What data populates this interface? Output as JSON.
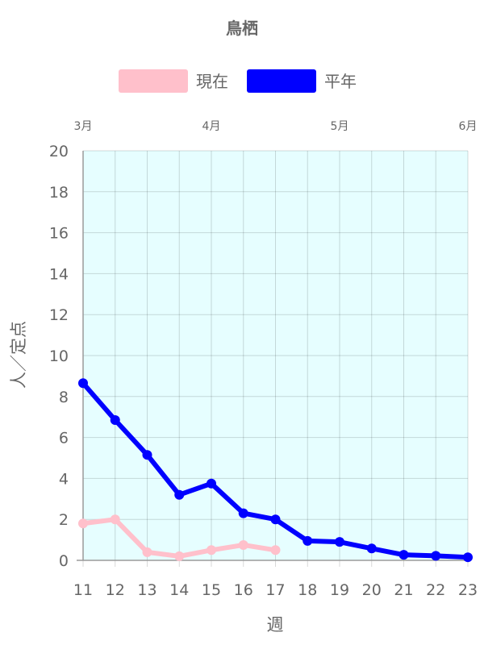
{
  "chart_data": {
    "type": "line",
    "title": "鳥栖",
    "xlabel": "週",
    "ylabel": "人／定点",
    "x": [
      11,
      12,
      13,
      14,
      15,
      16,
      17,
      18,
      19,
      20,
      21,
      22,
      23
    ],
    "ylim": [
      0,
      20
    ],
    "yticks": [
      0,
      2,
      4,
      6,
      8,
      10,
      12,
      14,
      16,
      18,
      20
    ],
    "month_labels": [
      {
        "label": "3月",
        "week": 11
      },
      {
        "label": "4月",
        "week": 15
      },
      {
        "label": "5月",
        "week": 19
      },
      {
        "label": "6月",
        "week": 23
      }
    ],
    "series": [
      {
        "name": "現在",
        "color": "#ffc0cb",
        "values": [
          1.8,
          2.0,
          0.4,
          0.2,
          0.5,
          0.75,
          0.5,
          null,
          null,
          null,
          null,
          null,
          null
        ]
      },
      {
        "name": "平年",
        "color": "#0000ff",
        "values": [
          8.65,
          6.85,
          5.15,
          3.2,
          3.75,
          2.3,
          2.0,
          0.95,
          0.9,
          0.58,
          0.27,
          0.22,
          0.15
        ]
      }
    ],
    "legend_position": "top",
    "grid": true,
    "plot_background": "#e6feff"
  }
}
